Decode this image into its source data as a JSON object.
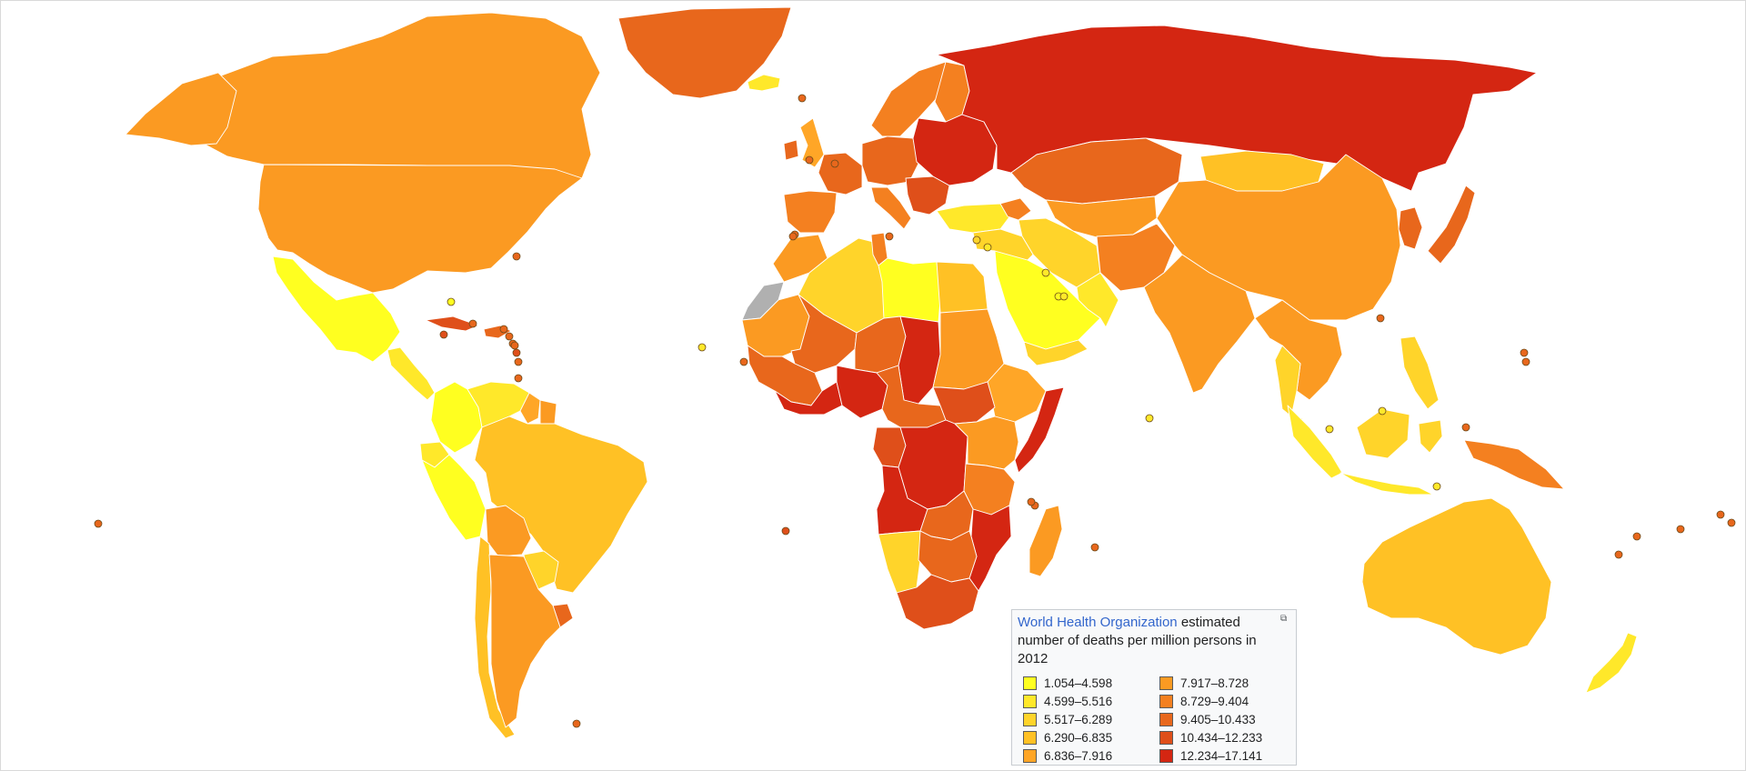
{
  "legend": {
    "title_link": "World Health Organization",
    "title_rest": " estimated number of deaths per million persons in 2012",
    "expand_icon": "expand-icon",
    "classes": [
      {
        "range": "1.054–4.598",
        "color": "#ffff20"
      },
      {
        "range": "4.599–5.516",
        "color": "#ffe82a"
      },
      {
        "range": "5.517–6.289",
        "color": "#ffd42a"
      },
      {
        "range": "6.290–6.835",
        "color": "#ffc125"
      },
      {
        "range": "6.836–7.916",
        "color": "#ffa627"
      },
      {
        "range": "7.917–8.728",
        "color": "#fb9a22"
      },
      {
        "range": "8.729–9.404",
        "color": "#f48020"
      },
      {
        "range": "9.405–10.433",
        "color": "#e8671c"
      },
      {
        "range": "10.434–12.233",
        "color": "#df4f1a"
      },
      {
        "range": "12.234–17.141",
        "color": "#d42612"
      }
    ]
  },
  "no_data_color": "#b0b0b0",
  "regions": [
    {
      "name": "Canada",
      "cls": 5
    },
    {
      "name": "United States",
      "cls": 5
    },
    {
      "name": "Alaska",
      "cls": 5
    },
    {
      "name": "Greenland",
      "cls": 7
    },
    {
      "name": "Iceland",
      "cls": 1
    },
    {
      "name": "Mexico",
      "cls": 0
    },
    {
      "name": "Central America",
      "cls": 1
    },
    {
      "name": "Cuba",
      "cls": 8
    },
    {
      "name": "Hispaniola",
      "cls": 7
    },
    {
      "name": "Colombia",
      "cls": 0
    },
    {
      "name": "Venezuela",
      "cls": 1
    },
    {
      "name": "Guyana",
      "cls": 4
    },
    {
      "name": "Suriname",
      "cls": 5
    },
    {
      "name": "Ecuador",
      "cls": 1
    },
    {
      "name": "Peru",
      "cls": 0
    },
    {
      "name": "Brazil",
      "cls": 3
    },
    {
      "name": "Bolivia",
      "cls": 5
    },
    {
      "name": "Paraguay",
      "cls": 2
    },
    {
      "name": "Uruguay",
      "cls": 7
    },
    {
      "name": "Chile",
      "cls": 3
    },
    {
      "name": "Argentina",
      "cls": 5
    },
    {
      "name": "United Kingdom",
      "cls": 4
    },
    {
      "name": "Ireland",
      "cls": 7
    },
    {
      "name": "Scandinavia",
      "cls": 6
    },
    {
      "name": "Finland",
      "cls": 6
    },
    {
      "name": "Iberia",
      "cls": 6
    },
    {
      "name": "France",
      "cls": 7
    },
    {
      "name": "Central Europe",
      "cls": 7
    },
    {
      "name": "Italy",
      "cls": 6
    },
    {
      "name": "Balkans",
      "cls": 8
    },
    {
      "name": "Eastern Europe",
      "cls": 9
    },
    {
      "name": "Russia",
      "cls": 9
    },
    {
      "name": "Kazakhstan",
      "cls": 7
    },
    {
      "name": "Central Asia",
      "cls": 5
    },
    {
      "name": "Turkey",
      "cls": 1
    },
    {
      "name": "Caucasus",
      "cls": 6
    },
    {
      "name": "Iran",
      "cls": 2
    },
    {
      "name": "Afghanistan & Pakistan",
      "cls": 6
    },
    {
      "name": "Mongolia",
      "cls": 3
    },
    {
      "name": "China",
      "cls": 5
    },
    {
      "name": "India",
      "cls": 5
    },
    {
      "name": "Southeast Asia",
      "cls": 5
    },
    {
      "name": "Thailand",
      "cls": 2
    },
    {
      "name": "Korea",
      "cls": 7
    },
    {
      "name": "Japan",
      "cls": 7
    },
    {
      "name": "Philippines",
      "cls": 2
    },
    {
      "name": "Malaysia",
      "cls": 1
    },
    {
      "name": "Sumatra",
      "cls": 1
    },
    {
      "name": "Borneo",
      "cls": 2
    },
    {
      "name": "Java",
      "cls": 1
    },
    {
      "name": "Sulawesi",
      "cls": 2
    },
    {
      "name": "New Guinea",
      "cls": 6
    },
    {
      "name": "Australia",
      "cls": 3
    },
    {
      "name": "New Zealand",
      "cls": 1
    },
    {
      "name": "Arabian Peninsula",
      "cls": 0
    },
    {
      "name": "Gulf States",
      "cls": 1
    },
    {
      "name": "Yemen",
      "cls": 2
    },
    {
      "name": "Levant & Iraq",
      "cls": 2
    },
    {
      "name": "Morocco",
      "cls": 5
    },
    {
      "name": "Western Sahara",
      "cls": -1
    },
    {
      "name": "Algeria",
      "cls": 2
    },
    {
      "name": "Tunisia",
      "cls": 6
    },
    {
      "name": "Libya",
      "cls": 0
    },
    {
      "name": "Egypt",
      "cls": 3
    },
    {
      "name": "Mauritania",
      "cls": 5
    },
    {
      "name": "Mali",
      "cls": 7
    },
    {
      "name": "Niger",
      "cls": 7
    },
    {
      "name": "Chad",
      "cls": 9
    },
    {
      "name": "Sudan",
      "cls": 5
    },
    {
      "name": "Horn of Africa",
      "cls": 4
    },
    {
      "name": "Somalia",
      "cls": 9
    },
    {
      "name": "West Africa",
      "cls": 7
    },
    {
      "name": "Gulf of Guinea",
      "cls": 9
    },
    {
      "name": "Nigeria",
      "cls": 9
    },
    {
      "name": "Cameroon & CAR",
      "cls": 7
    },
    {
      "name": "South Sudan",
      "cls": 8
    },
    {
      "name": "Gabon & Congo",
      "cls": 8
    },
    {
      "name": "DR Congo",
      "cls": 9
    },
    {
      "name": "East Africa",
      "cls": 5
    },
    {
      "name": "Tanzania",
      "cls": 6
    },
    {
      "name": "Angola",
      "cls": 9
    },
    {
      "name": "Zambia",
      "cls": 7
    },
    {
      "name": "Mozambique",
      "cls": 9
    },
    {
      "name": "Namibia",
      "cls": 2
    },
    {
      "name": "Botswana & Zimbabwe",
      "cls": 7
    },
    {
      "name": "South Africa",
      "cls": 8
    },
    {
      "name": "Madagascar",
      "cls": 5
    }
  ],
  "markers": [
    {
      "name": "Azores",
      "cls": 7
    },
    {
      "name": "Madeira",
      "cls": 7
    },
    {
      "name": "Canary Islands",
      "cls": 7
    },
    {
      "name": "Cape Verde",
      "cls": 1
    },
    {
      "name": "Bermuda",
      "cls": 7
    },
    {
      "name": "Bahamas",
      "cls": 0
    },
    {
      "name": "Jamaica",
      "cls": 8
    },
    {
      "name": "Puerto Rico",
      "cls": 7
    },
    {
      "name": "Antigua",
      "cls": 7
    },
    {
      "name": "Dominica",
      "cls": 7
    },
    {
      "name": "St Lucia",
      "cls": 7
    },
    {
      "name": "St Vincent",
      "cls": 8
    },
    {
      "name": "Barbados",
      "cls": 7
    },
    {
      "name": "Grenada",
      "cls": 7
    },
    {
      "name": "Trinidad",
      "cls": 7
    },
    {
      "name": "Malta",
      "cls": 7
    },
    {
      "name": "Cyprus",
      "cls": 2
    },
    {
      "name": "Lebanon",
      "cls": 1
    },
    {
      "name": "Bahrain",
      "cls": 1
    },
    {
      "name": "Qatar",
      "cls": 0
    },
    {
      "name": "UAE",
      "cls": 1
    },
    {
      "name": "Maldives",
      "cls": 1
    },
    {
      "name": "Singapore",
      "cls": 1
    },
    {
      "name": "Brunei",
      "cls": 1
    },
    {
      "name": "Timor-Leste",
      "cls": 1
    },
    {
      "name": "Comoros",
      "cls": 7
    },
    {
      "name": "Mauritius",
      "cls": 7
    },
    {
      "name": "Seychelles",
      "cls": 7
    },
    {
      "name": "Sao Tome",
      "cls": 7
    },
    {
      "name": "Micronesia",
      "cls": 7
    },
    {
      "name": "Marshall Islands",
      "cls": 7
    },
    {
      "name": "Fiji",
      "cls": 7
    },
    {
      "name": "Samoa",
      "cls": 7
    },
    {
      "name": "Tonga",
      "cls": 7
    },
    {
      "name": "Vanuatu",
      "cls": 7
    },
    {
      "name": "Kiribati",
      "cls": 7
    },
    {
      "name": "Falklands",
      "cls": 7
    },
    {
      "name": "French Polynesia",
      "cls": 7
    },
    {
      "name": "Hawaii",
      "cls": 8
    },
    {
      "name": "St Helena",
      "cls": 7
    },
    {
      "name": "Channel Islands",
      "cls": 7
    },
    {
      "name": "Faroe Islands",
      "cls": 7
    },
    {
      "name": "Solomon Islands",
      "cls": 7
    }
  ]
}
